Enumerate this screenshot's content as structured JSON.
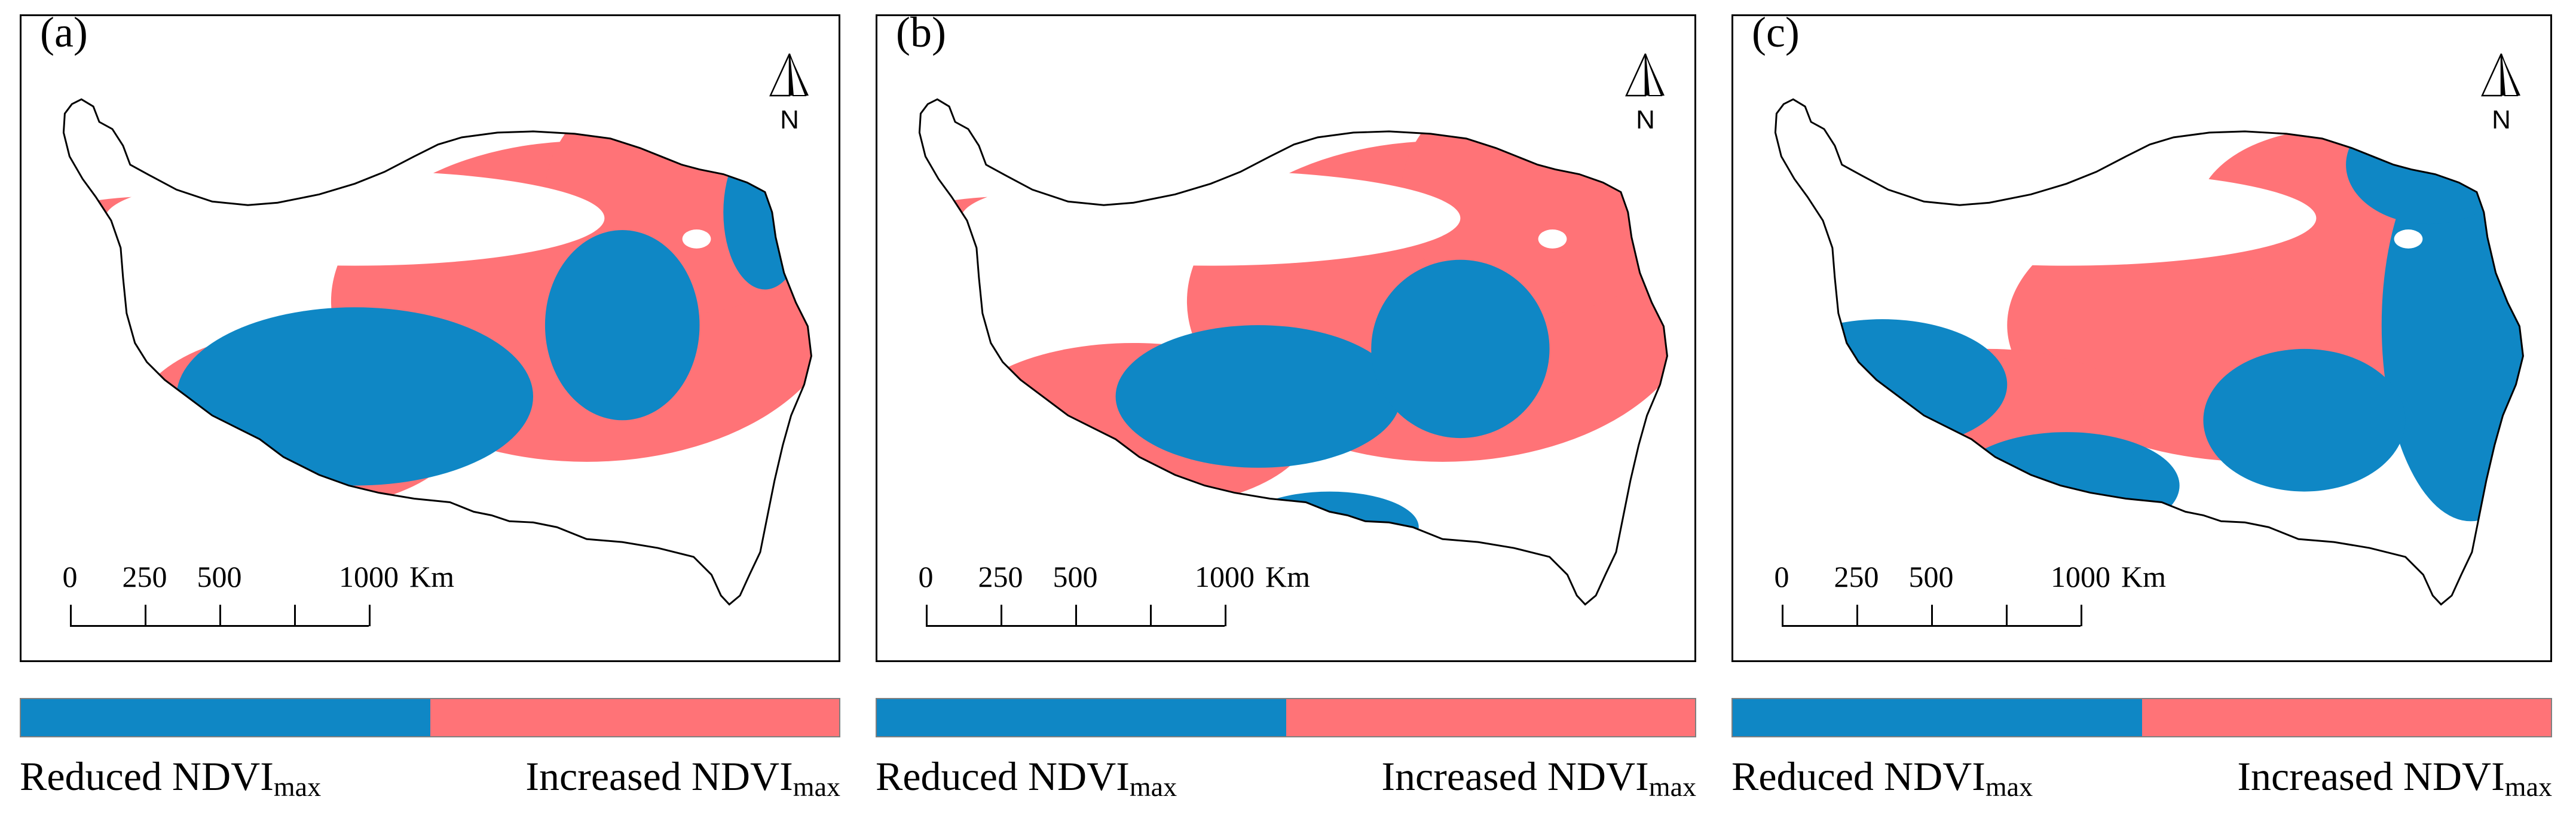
{
  "colors": {
    "reduced": "#0f87c5",
    "increased": "#ff7377",
    "boundary": "#000000"
  },
  "north_arrow_label": "N",
  "scale": {
    "ticks": [
      "0",
      "250",
      "500",
      "1000"
    ],
    "unit": "Km"
  },
  "legend": {
    "reduced": {
      "base": "Reduced NDVI",
      "sub": "max"
    },
    "increased": {
      "base": "Increased NDVI",
      "sub": "max"
    }
  },
  "panels": [
    {
      "label": "(a)"
    },
    {
      "label": "(b)"
    },
    {
      "label": "(c)"
    }
  ]
}
